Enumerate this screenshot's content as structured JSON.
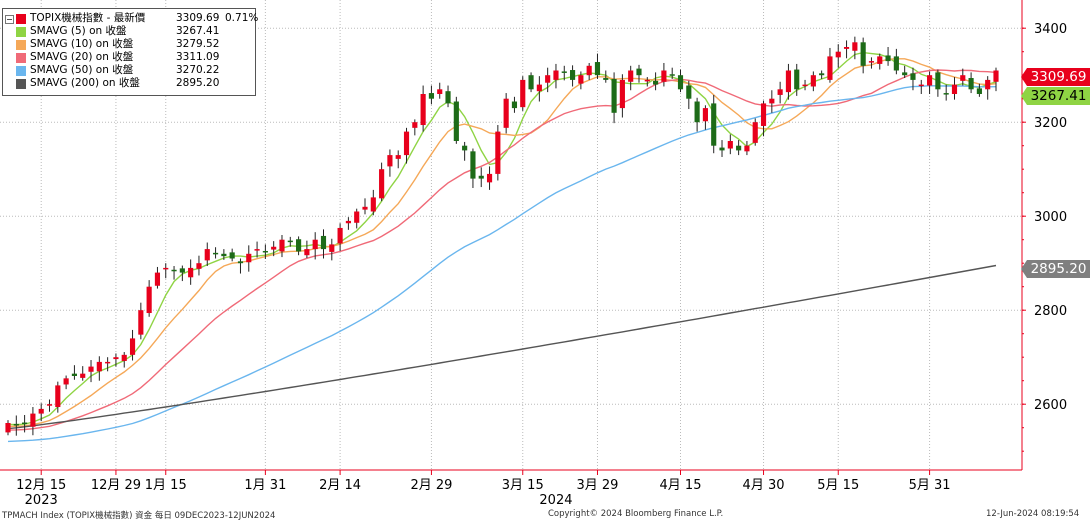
{
  "chart_data": {
    "type": "candlestick",
    "series_name": "TOPIX機械指數 - 最新價",
    "last_value": "3309.69",
    "last_change": "0.71%",
    "yaxis": {
      "ticks": [
        "3400",
        "3200",
        "3000",
        "2800",
        "2600"
      ],
      "ylim": [
        2460,
        3460
      ],
      "side": "right"
    },
    "xaxis": {
      "ticks": [
        {
          "label": "12月 15",
          "index": 4
        },
        {
          "label": "12月 29",
          "index": 13
        },
        {
          "label": "1月 15",
          "index": 19
        },
        {
          "label": "1月 31",
          "index": 31
        },
        {
          "label": "2月 14",
          "index": 40
        },
        {
          "label": "2月 29",
          "index": 51
        },
        {
          "label": "3月 15",
          "index": 62
        },
        {
          "label": "3月 29",
          "index": 71
        },
        {
          "label": "4月 15",
          "index": 81
        },
        {
          "label": "4月 30",
          "index": 91
        },
        {
          "label": "5月 15",
          "index": 100
        },
        {
          "label": "5月 31",
          "index": 111
        }
      ],
      "year_labels": [
        {
          "label": "2023",
          "index": 4
        },
        {
          "label": "2024",
          "index": 66
        }
      ]
    },
    "closes": [
      2560,
      2555,
      2560,
      2580,
      2590,
      2600,
      2640,
      2655,
      2660,
      2665,
      2680,
      2690,
      2690,
      2700,
      2705,
      2740,
      2800,
      2850,
      2880,
      2890,
      2885,
      2880,
      2890,
      2900,
      2930,
      2920,
      2915,
      2910,
      2900,
      2920,
      2930,
      2925,
      2935,
      2950,
      2945,
      2925,
      2930,
      2950,
      2930,
      2940,
      2975,
      2990,
      3010,
      3020,
      3040,
      3100,
      3130,
      3130,
      3180,
      3200,
      3260,
      3250,
      3270,
      3240,
      3160,
      3140,
      3080,
      3080,
      3090,
      3180,
      3250,
      3230,
      3290,
      3270,
      3280,
      3300,
      3310,
      3305,
      3290,
      3300,
      3320,
      3300,
      3290,
      3220,
      3290,
      3310,
      3300,
      3290,
      3280,
      3310,
      3300,
      3270,
      3250,
      3200,
      3230,
      3150,
      3140,
      3160,
      3140,
      3150,
      3200,
      3240,
      3250,
      3270,
      3310,
      3270,
      3280,
      3300,
      3300,
      3340,
      3350,
      3360,
      3370,
      3320,
      3330,
      3340,
      3330,
      3310,
      3300,
      3290,
      3280,
      3300,
      3270,
      3260,
      3280,
      3300,
      3270,
      3260,
      3290,
      3310
    ],
    "sma_series": [
      {
        "name": "SMAVG (5)  on 收盤",
        "value": "3267.41",
        "color": "#8fd444",
        "window": 5
      },
      {
        "name": "SMAVG (10)  on 收盤",
        "value": "3279.52",
        "color": "#f5a858",
        "window": 10
      },
      {
        "name": "SMAVG (20)  on 收盤",
        "value": "3311.09",
        "color": "#f06a78",
        "window": 20
      },
      {
        "name": "SMAVG (50)  on 收盤",
        "value": "3270.22",
        "color": "#6ab6ee",
        "window": 50
      },
      {
        "name": "SMAVG (200)  on 收盤",
        "value": "2895.20",
        "color": "#555555",
        "range": [
          2548,
          2895.2
        ]
      }
    ],
    "tags": [
      {
        "value": "3309.69",
        "style": "red"
      },
      {
        "value": "3267.41",
        "style": "green"
      },
      {
        "value": "2895.20",
        "style": "gray"
      }
    ],
    "colors": {
      "up": "#e8001c",
      "down": "#1d6b18",
      "grid": "#bbbbbb"
    }
  },
  "footer": {
    "left": "TPMACH Index (TOPIX機械指數) 資金  每日 09DEC2023-12JUN2024",
    "center": "Copyright© 2024 Bloomberg Finance L.P.",
    "right": "12-Jun-2024 08:19:54"
  }
}
